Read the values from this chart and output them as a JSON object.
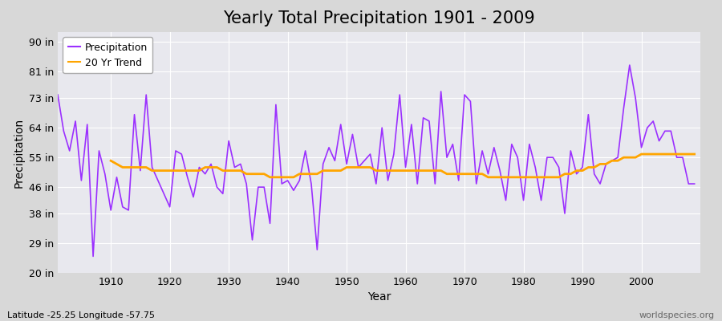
{
  "title": "Yearly Total Precipitation 1901 - 2009",
  "xlabel": "Year",
  "ylabel": "Precipitation",
  "lat_lon_label": "Latitude -25.25 Longitude -57.75",
  "watermark": "worldspecies.org",
  "years": [
    1901,
    1902,
    1903,
    1904,
    1905,
    1906,
    1907,
    1908,
    1909,
    1910,
    1911,
    1912,
    1913,
    1914,
    1915,
    1916,
    1917,
    1918,
    1919,
    1920,
    1921,
    1922,
    1923,
    1924,
    1925,
    1926,
    1927,
    1928,
    1929,
    1930,
    1931,
    1932,
    1933,
    1934,
    1935,
    1936,
    1937,
    1938,
    1939,
    1940,
    1941,
    1942,
    1943,
    1944,
    1945,
    1946,
    1947,
    1948,
    1949,
    1950,
    1951,
    1952,
    1953,
    1954,
    1955,
    1956,
    1957,
    1958,
    1959,
    1960,
    1961,
    1962,
    1963,
    1964,
    1965,
    1966,
    1967,
    1968,
    1969,
    1970,
    1971,
    1972,
    1973,
    1974,
    1975,
    1976,
    1977,
    1978,
    1979,
    1980,
    1981,
    1982,
    1983,
    1984,
    1985,
    1986,
    1987,
    1988,
    1989,
    1990,
    1991,
    1992,
    1993,
    1994,
    1995,
    1996,
    1997,
    1998,
    1999,
    2000,
    2001,
    2002,
    2003,
    2004,
    2005,
    2006,
    2007,
    2008,
    2009
  ],
  "precipitation": [
    74,
    63,
    57,
    66,
    48,
    65,
    25,
    57,
    50,
    39,
    49,
    40,
    39,
    68,
    51,
    74,
    52,
    48,
    44,
    40,
    57,
    56,
    49,
    43,
    52,
    50,
    53,
    46,
    44,
    60,
    52,
    53,
    47,
    30,
    46,
    46,
    35,
    71,
    47,
    48,
    45,
    48,
    57,
    47,
    27,
    53,
    58,
    54,
    65,
    53,
    62,
    52,
    54,
    56,
    47,
    64,
    48,
    56,
    74,
    52,
    65,
    47,
    67,
    66,
    47,
    75,
    55,
    59,
    48,
    74,
    72,
    47,
    57,
    50,
    58,
    51,
    42,
    59,
    55,
    42,
    59,
    52,
    42,
    55,
    55,
    52,
    38,
    57,
    50,
    52,
    68,
    50,
    47,
    53,
    54,
    55,
    70,
    83,
    73,
    58,
    64,
    66,
    60,
    63,
    63,
    55,
    55,
    47,
    47
  ],
  "trend_years": [
    1910,
    1911,
    1912,
    1913,
    1914,
    1915,
    1916,
    1917,
    1918,
    1919,
    1920,
    1921,
    1922,
    1923,
    1924,
    1925,
    1926,
    1927,
    1928,
    1929,
    1930,
    1931,
    1932,
    1933,
    1934,
    1935,
    1936,
    1937,
    1938,
    1939,
    1940,
    1941,
    1942,
    1943,
    1944,
    1945,
    1946,
    1947,
    1948,
    1949,
    1950,
    1951,
    1952,
    1953,
    1954,
    1955,
    1956,
    1957,
    1958,
    1959,
    1960,
    1961,
    1962,
    1963,
    1964,
    1965,
    1966,
    1967,
    1968,
    1969,
    1970,
    1971,
    1972,
    1973,
    1974,
    1975,
    1976,
    1977,
    1978,
    1979,
    1980,
    1981,
    1982,
    1983,
    1984,
    1985,
    1986,
    1987,
    1988,
    1989,
    1990,
    1991,
    1992,
    1993,
    1994,
    1995,
    1996,
    1997,
    1998,
    1999,
    2000,
    2001,
    2002,
    2003,
    2004,
    2005,
    2006,
    2007,
    2008,
    2009
  ],
  "trend": [
    54,
    53,
    52,
    52,
    52,
    52,
    52,
    51,
    51,
    51,
    51,
    51,
    51,
    51,
    51,
    51,
    52,
    52,
    52,
    51,
    51,
    51,
    51,
    50,
    50,
    50,
    50,
    49,
    49,
    49,
    49,
    49,
    50,
    50,
    50,
    50,
    51,
    51,
    51,
    51,
    52,
    52,
    52,
    52,
    52,
    51,
    51,
    51,
    51,
    51,
    51,
    51,
    51,
    51,
    51,
    51,
    51,
    50,
    50,
    50,
    50,
    50,
    50,
    50,
    49,
    49,
    49,
    49,
    49,
    49,
    49,
    49,
    49,
    49,
    49,
    49,
    49,
    50,
    50,
    51,
    51,
    52,
    52,
    53,
    53,
    54,
    54,
    55,
    55,
    55,
    56,
    56,
    56,
    56,
    56,
    56,
    56,
    56,
    56,
    56
  ],
  "precip_color": "#9B30FF",
  "trend_color": "#FFA500",
  "fig_bg_color": "#D8D8D8",
  "plot_bg_color": "#E8E8EE",
  "grid_color": "#FFFFFF",
  "yticks": [
    20,
    29,
    38,
    46,
    55,
    64,
    73,
    81,
    90
  ],
  "ytick_labels": [
    "20 in",
    "29 in",
    "38 in",
    "46 in",
    "55 in",
    "64 in",
    "73 in",
    "81 in",
    "90 in"
  ],
  "ylim": [
    20,
    93
  ],
  "xlim": [
    1901,
    2010
  ],
  "xticks": [
    1910,
    1920,
    1930,
    1940,
    1950,
    1960,
    1970,
    1980,
    1990,
    2000
  ],
  "title_fontsize": 15,
  "axis_label_fontsize": 10,
  "tick_fontsize": 9,
  "legend_fontsize": 9,
  "watermark_fontsize": 8,
  "lat_lon_fontsize": 8
}
